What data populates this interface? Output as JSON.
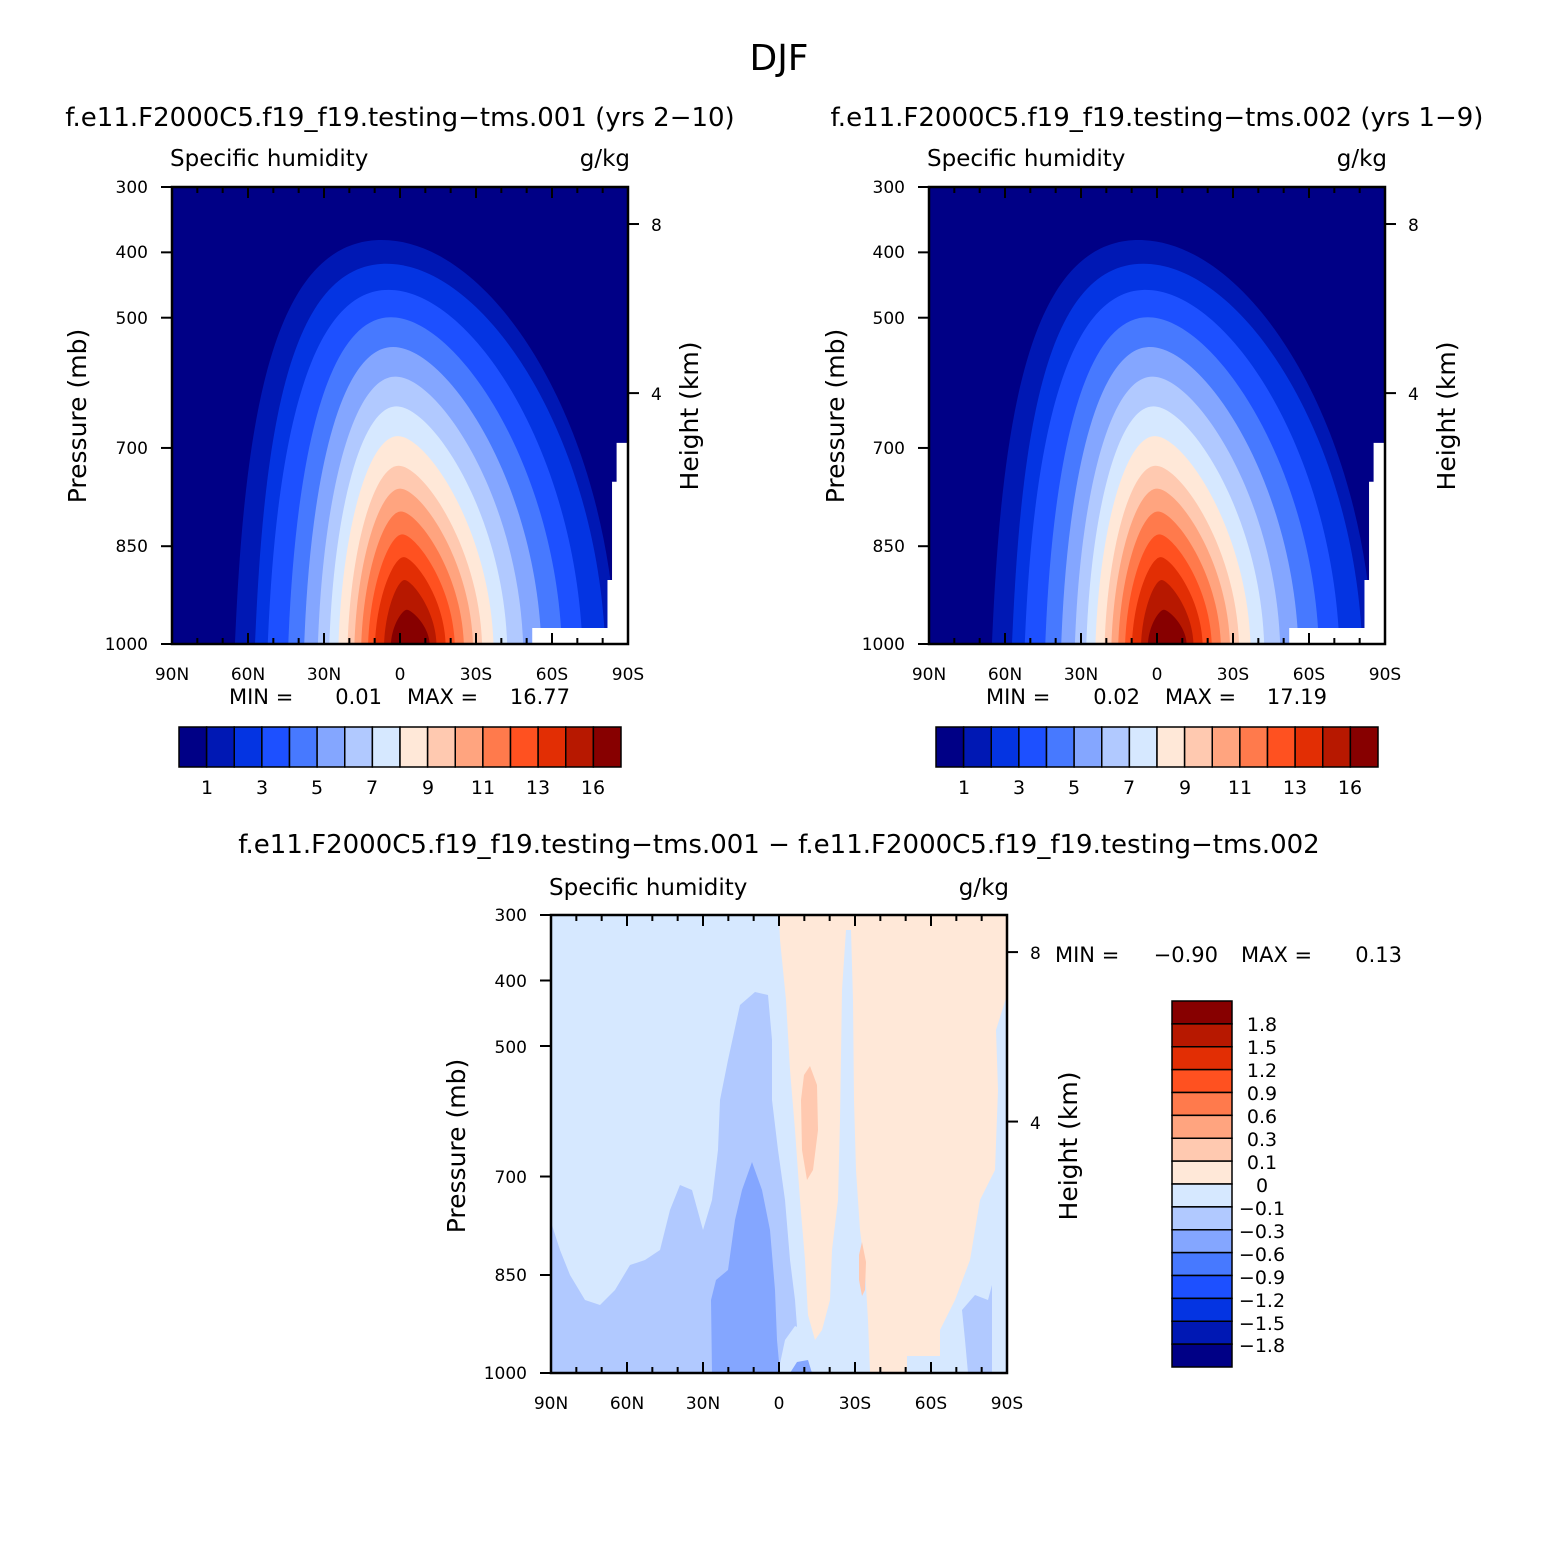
{
  "page": {
    "title": "DJF"
  },
  "colors": {
    "abs_levels": [
      "#000086",
      "#0018b4",
      "#0434e2",
      "#1d50ff",
      "#4779ff",
      "#84a6ff",
      "#b1c9ff",
      "#d6e8ff",
      "#ffe8d8",
      "#ffc9b0",
      "#ffa47f",
      "#ff7a4c",
      "#ff5120",
      "#e22e04",
      "#b71800",
      "#870000"
    ],
    "diff_levels": [
      "#000086",
      "#0018b4",
      "#0434e2",
      "#1d50ff",
      "#4779ff",
      "#84a6ff",
      "#b1c9ff",
      "#d6e8ff",
      "#ffe8d8",
      "#ffc9b0",
      "#ffa47f",
      "#ff7a4c",
      "#ff5120",
      "#e22e04",
      "#b71800",
      "#870000"
    ]
  },
  "chart_data": [
    {
      "id": "panel-1",
      "type": "heatmap",
      "case_title": "f.e11.F2000C5.f19_f19.testing−tms.001 (yrs 2−10)",
      "left_title": "Specific humidity",
      "right_title": "g/kg",
      "ylabel": "Pressure (mb)",
      "ylabel_right": "Height (km)",
      "x_ticks": [
        "90N",
        "60N",
        "30N",
        "0",
        "30S",
        "60S",
        "90S"
      ],
      "y_ticks": [
        "300",
        "400",
        "500",
        "700",
        "850",
        "1000"
      ],
      "y_right_ticks": [
        "8",
        "4"
      ],
      "xlim": [
        90,
        -90
      ],
      "ylim_mb": [
        1000,
        300
      ],
      "peak": {
        "lat": -5,
        "pressure_mb": 1000,
        "value": 16.77
      },
      "min": 0.01,
      "max": 16.77,
      "min_label": "MIN =",
      "min_value": "0.01",
      "max_label": "MAX =",
      "max_value": "16.77",
      "colorbar_labels": [
        "1",
        "3",
        "5",
        "7",
        "9",
        "11",
        "13",
        "16"
      ]
    },
    {
      "id": "panel-2",
      "type": "heatmap",
      "case_title": "f.e11.F2000C5.f19_f19.testing−tms.002 (yrs 1−9)",
      "left_title": "Specific humidity",
      "right_title": "g/kg",
      "ylabel": "Pressure (mb)",
      "ylabel_right": "Height (km)",
      "x_ticks": [
        "90N",
        "60N",
        "30N",
        "0",
        "30S",
        "60S",
        "90S"
      ],
      "y_ticks": [
        "300",
        "400",
        "500",
        "700",
        "850",
        "1000"
      ],
      "y_right_ticks": [
        "8",
        "4"
      ],
      "xlim": [
        90,
        -90
      ],
      "ylim_mb": [
        1000,
        300
      ],
      "peak": {
        "lat": -5,
        "pressure_mb": 1000,
        "value": 17.19
      },
      "min": 0.02,
      "max": 17.19,
      "min_label": "MIN =",
      "min_value": "0.02",
      "max_label": "MAX =",
      "max_value": "17.19",
      "colorbar_labels": [
        "1",
        "3",
        "5",
        "7",
        "9",
        "11",
        "13",
        "16"
      ]
    },
    {
      "id": "panel-diff",
      "type": "heatmap",
      "case_title": "f.e11.F2000C5.f19_f19.testing−tms.001 − f.e11.F2000C5.f19_f19.testing−tms.002",
      "left_title": "Specific humidity",
      "right_title": "g/kg",
      "ylabel": "Pressure (mb)",
      "ylabel_right": "Height (km)",
      "x_ticks": [
        "90N",
        "60N",
        "30N",
        "0",
        "30S",
        "60S",
        "90S"
      ],
      "y_ticks": [
        "300",
        "400",
        "500",
        "700",
        "850",
        "1000"
      ],
      "y_right_ticks": [
        "8",
        "4"
      ],
      "xlim": [
        90,
        -90
      ],
      "ylim_mb": [
        1000,
        300
      ],
      "min": -0.9,
      "max": 0.13,
      "min_label": "MIN =",
      "min_value": "−0.90",
      "max_label": "MAX =",
      "max_value": "0.13",
      "colorbar_labels": [
        "1.8",
        "1.5",
        "1.2",
        "0.9",
        "0.6",
        "0.3",
        "0.1",
        "0",
        "−0.1",
        "−0.3",
        "−0.6",
        "−0.9",
        "−1.2",
        "−1.5",
        "−1.8"
      ]
    }
  ]
}
